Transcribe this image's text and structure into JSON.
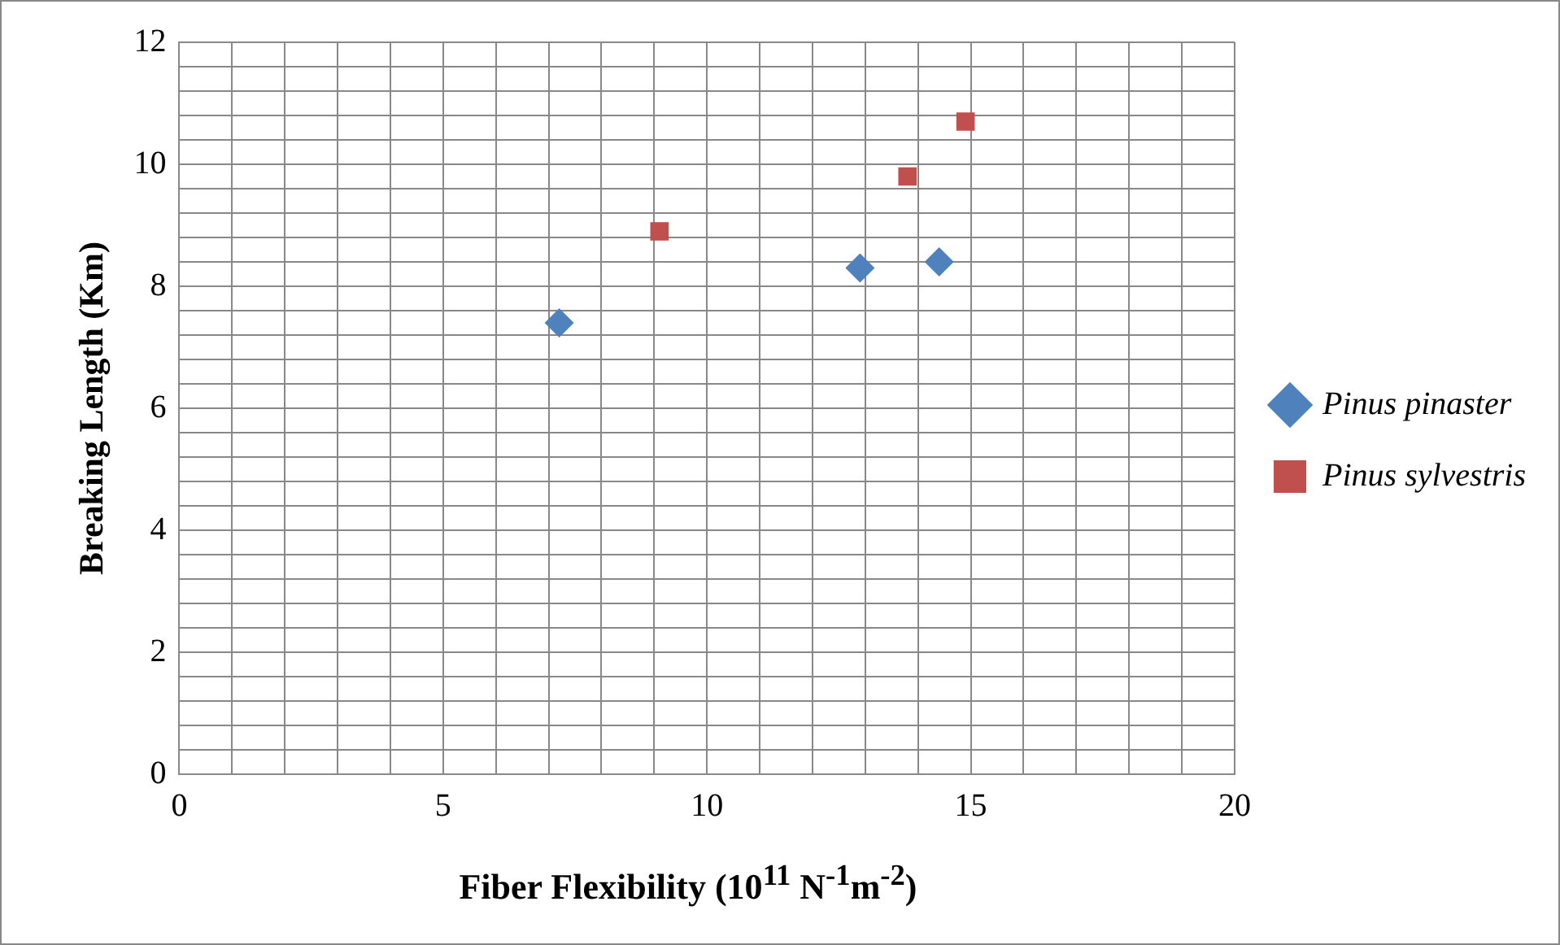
{
  "chart_data": {
    "type": "scatter",
    "xlabel": "Fiber Flexibility (10$^{11}$ N$^{-1}$m$^{-2}$)",
    "ylabel": "Breaking Length (Km)",
    "series": [
      {
        "name": "Pinus pinaster",
        "color": "#4f81bd",
        "marker": "diamond",
        "x": [
          7.2,
          12.9,
          14.4
        ],
        "values": [
          7.4,
          8.3,
          8.4
        ]
      },
      {
        "name": "Pinus sylvestris",
        "color": "#c0504d",
        "marker": "square",
        "x": [
          9.1,
          13.8,
          14.9
        ],
        "values": [
          8.9,
          9.8,
          10.7
        ]
      }
    ],
    "xlim": [
      0,
      20
    ],
    "ylim": [
      0,
      12
    ],
    "xticks": [
      0,
      {
        "value": 1,
        "label": null
      },
      {
        "value": 2,
        "label": null
      },
      {
        "value": 3,
        "label": null
      },
      {
        "value": 4,
        "label": null
      },
      5,
      {
        "value": 6,
        "label": null
      },
      {
        "value": 7,
        "label": null
      },
      {
        "value": 8,
        "label": null
      },
      {
        "value": 9,
        "label": null
      },
      10,
      {
        "value": 11,
        "label": null
      },
      {
        "value": 12,
        "label": null
      },
      {
        "value": 13,
        "label": null
      },
      {
        "value": 14,
        "label": null
      },
      15,
      {
        "value": 16,
        "label": null
      },
      {
        "value": 17,
        "label": null
      },
      {
        "value": 18,
        "label": null
      },
      {
        "value": 19,
        "label": null
      },
      20
    ],
    "yticks": [
      0,
      {
        "value": 0.4,
        "label": null
      },
      {
        "value": 0.8,
        "label": null
      },
      {
        "value": 1.2,
        "label": null
      },
      {
        "value": 1.6,
        "label": null
      },
      2,
      {
        "value": 2.4,
        "label": null
      },
      {
        "value": 2.8,
        "label": null
      },
      {
        "value": 3.2,
        "label": null
      },
      {
        "value": 3.6,
        "label": null
      },
      4,
      {
        "value": 4.4,
        "label": null
      },
      {
        "value": 4.8,
        "label": null
      },
      {
        "value": 5.2,
        "label": null
      },
      {
        "value": 5.6,
        "label": null
      },
      6,
      {
        "value": 6.4,
        "label": null
      },
      {
        "value": 6.8,
        "label": null
      },
      {
        "value": 7.2,
        "label": null
      },
      {
        "value": 7.6,
        "label": null
      },
      8,
      {
        "value": 8.4,
        "label": null
      },
      {
        "value": 8.8,
        "label": null
      },
      {
        "value": 9.2,
        "label": null
      },
      {
        "value": 9.6,
        "label": null
      },
      10,
      {
        "value": 10.4,
        "label": null
      },
      {
        "value": 10.8,
        "label": null
      },
      {
        "value": 11.2,
        "label": null
      },
      {
        "value": 11.6,
        "label": null
      },
      12
    ],
    "grid": true,
    "legend": "right"
  }
}
